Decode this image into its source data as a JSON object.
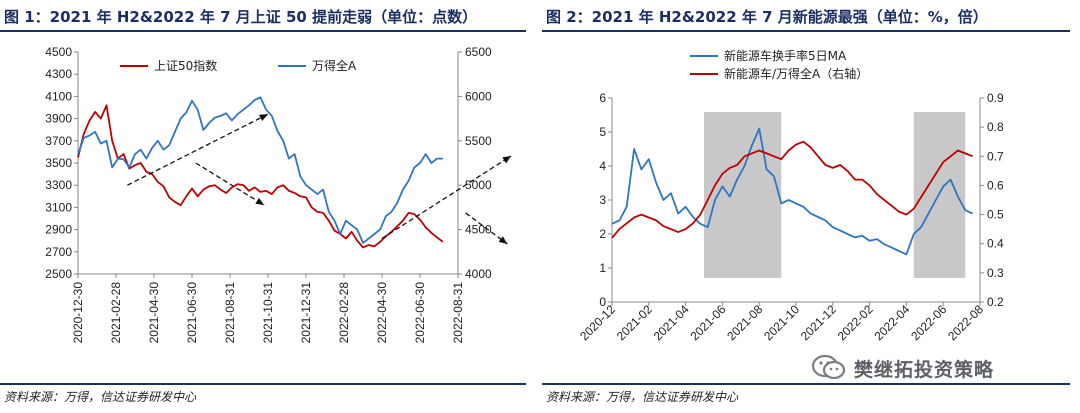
{
  "figures": [
    {
      "title": "图 1：2021 年 H2&2022 年 7 月上证 50 提前走弱（单位：点数）",
      "source": "资料来源：万得，信达证券研发中心"
    },
    {
      "title": "图 2：2021 年 H2&2022 年 7 月新能源最强（单位：%，倍）",
      "source": "资料来源：万得，信达证券研发中心"
    }
  ],
  "watermark": {
    "text": "樊继拓投资策略",
    "logo_icon": "wechat-icon"
  },
  "chart_data": [
    {
      "type": "line",
      "x_ticks": [
        "2020-12-30",
        "2021-02-28",
        "2021-04-30",
        "2021-06-30",
        "2021-08-31",
        "2021-10-31",
        "2021-12-31",
        "2022-02-28",
        "2022-04-30",
        "2022-06-30",
        "2022-08-31"
      ],
      "x": [
        0,
        0.15,
        0.3,
        0.45,
        0.6,
        0.75,
        0.9,
        1.05,
        1.2,
        1.35,
        1.5,
        1.65,
        1.8,
        1.95,
        2.1,
        2.25,
        2.4,
        2.55,
        2.7,
        2.85,
        3,
        3.15,
        3.3,
        3.45,
        3.6,
        3.75,
        3.9,
        4.05,
        4.2,
        4.35,
        4.5,
        4.65,
        4.8,
        4.95,
        5.1,
        5.25,
        5.4,
        5.55,
        5.7,
        5.85,
        6,
        6.15,
        6.3,
        6.45,
        6.6,
        6.75,
        6.9,
        7.05,
        7.2,
        7.35,
        7.5,
        7.65,
        7.8,
        7.95,
        8.1,
        8.25,
        8.4,
        8.55,
        8.7,
        8.85,
        9,
        9.15,
        9.3,
        9.45,
        9.6
      ],
      "y_left": {
        "range": [
          2500,
          4500
        ],
        "ticks": [
          2500,
          2700,
          2900,
          3100,
          3300,
          3500,
          3700,
          3900,
          4100,
          4300,
          4500
        ]
      },
      "y_right": {
        "range": [
          4000,
          6500
        ],
        "ticks": [
          4000,
          4500,
          5000,
          5500,
          6000,
          6500
        ]
      },
      "series": [
        {
          "name": "上证50指数",
          "axis": "left",
          "color": "#c00000",
          "values": [
            3550,
            3760,
            3880,
            3960,
            3900,
            4020,
            3700,
            3540,
            3580,
            3450,
            3480,
            3500,
            3420,
            3400,
            3330,
            3290,
            3190,
            3150,
            3120,
            3200,
            3270,
            3200,
            3260,
            3290,
            3300,
            3260,
            3230,
            3280,
            3310,
            3300,
            3250,
            3280,
            3240,
            3250,
            3220,
            3280,
            3300,
            3250,
            3230,
            3200,
            3190,
            3100,
            3060,
            3050,
            2980,
            2890,
            2860,
            2820,
            2880,
            2800,
            2740,
            2760,
            2750,
            2790,
            2840,
            2880,
            2930,
            2980,
            3050,
            3040,
            2990,
            2920,
            2870,
            2830,
            2790
          ]
        },
        {
          "name": "万得全A",
          "axis": "right",
          "color": "#2e75c2",
          "values": [
            5350,
            5530,
            5560,
            5600,
            5470,
            5500,
            5200,
            5300,
            5290,
            5200,
            5350,
            5400,
            5300,
            5420,
            5500,
            5400,
            5450,
            5600,
            5750,
            5820,
            5950,
            5850,
            5620,
            5700,
            5760,
            5780,
            5810,
            5730,
            5800,
            5850,
            5900,
            5960,
            5990,
            5850,
            5780,
            5610,
            5500,
            5300,
            5350,
            5100,
            5000,
            4950,
            4900,
            4950,
            4700,
            4600,
            4450,
            4600,
            4550,
            4500,
            4350,
            4400,
            4450,
            4500,
            4650,
            4700,
            4800,
            4950,
            5050,
            5200,
            5250,
            5350,
            5250,
            5300,
            5300
          ]
        }
      ],
      "annotations": [
        {
          "type": "dashed-arrow",
          "from": [
            1.3,
            5000
          ],
          "to": [
            5.0,
            5800
          ],
          "axis": "right"
        },
        {
          "type": "dashed-arrow",
          "from": [
            3.1,
            3500
          ],
          "to": [
            4.9,
            3120
          ],
          "axis": "left"
        },
        {
          "type": "dashed-arrow",
          "from": [
            8.0,
            4400
          ],
          "to": [
            11.4,
            5330
          ],
          "axis": "right"
        },
        {
          "type": "dashed-arrow",
          "from": [
            10.2,
            3050
          ],
          "to": [
            11.3,
            2770
          ],
          "axis": "left"
        }
      ],
      "legend": "top",
      "grid": false
    },
    {
      "type": "line",
      "x_ticks": [
        "2020-12",
        "2021-02",
        "2021-04",
        "2021-06",
        "2021-08",
        "2021-10",
        "2021-12",
        "2022-02",
        "2022-04",
        "2022-06",
        "2022-08"
      ],
      "x": [
        0,
        0.2,
        0.4,
        0.6,
        0.8,
        1,
        1.2,
        1.4,
        1.6,
        1.8,
        2,
        2.2,
        2.4,
        2.6,
        2.8,
        3,
        3.2,
        3.4,
        3.6,
        3.8,
        4,
        4.2,
        4.4,
        4.6,
        4.8,
        5,
        5.2,
        5.4,
        5.6,
        5.8,
        6,
        6.2,
        6.4,
        6.6,
        6.8,
        7,
        7.2,
        7.4,
        7.6,
        7.8,
        8,
        8.2,
        8.4,
        8.6,
        8.8,
        9,
        9.2,
        9.4,
        9.6,
        9.8
      ],
      "y_left": {
        "range": [
          0,
          6
        ],
        "ticks": [
          0,
          1,
          2,
          3,
          4,
          5,
          6
        ]
      },
      "y_right": {
        "range": [
          0.2,
          0.9
        ],
        "ticks": [
          0.2,
          0.3,
          0.4,
          0.5,
          0.6,
          0.7,
          0.8,
          0.9
        ]
      },
      "series": [
        {
          "name": "新能源车换手率5日MA",
          "axis": "left",
          "color": "#2e75c2",
          "values": [
            2.3,
            2.4,
            2.8,
            4.5,
            3.9,
            4.2,
            3.5,
            3.0,
            3.2,
            2.6,
            2.8,
            2.5,
            2.3,
            2.2,
            3.0,
            3.4,
            3.1,
            3.6,
            4.0,
            4.6,
            5.1,
            3.9,
            3.7,
            2.9,
            3.0,
            2.9,
            2.8,
            2.6,
            2.5,
            2.4,
            2.2,
            2.1,
            2.0,
            1.9,
            1.95,
            1.8,
            1.85,
            1.7,
            1.6,
            1.5,
            1.4,
            2.0,
            2.2,
            2.6,
            3.0,
            3.4,
            3.6,
            3.1,
            2.7,
            2.6
          ]
        },
        {
          "name": "新能源车/万得全A（右轴）",
          "axis": "right",
          "color": "#c00000",
          "values": [
            0.42,
            0.45,
            0.47,
            0.49,
            0.5,
            0.49,
            0.48,
            0.46,
            0.45,
            0.44,
            0.45,
            0.47,
            0.5,
            0.55,
            0.6,
            0.64,
            0.66,
            0.67,
            0.7,
            0.71,
            0.72,
            0.71,
            0.7,
            0.69,
            0.72,
            0.74,
            0.75,
            0.73,
            0.7,
            0.67,
            0.66,
            0.67,
            0.65,
            0.62,
            0.62,
            0.6,
            0.57,
            0.55,
            0.53,
            0.51,
            0.5,
            0.52,
            0.56,
            0.6,
            0.64,
            0.68,
            0.7,
            0.72,
            0.71,
            0.7
          ]
        }
      ],
      "shaded_ranges": [
        [
          2.5,
          4.6
        ],
        [
          8.2,
          9.6
        ]
      ],
      "legend": "top",
      "grid": false
    }
  ]
}
